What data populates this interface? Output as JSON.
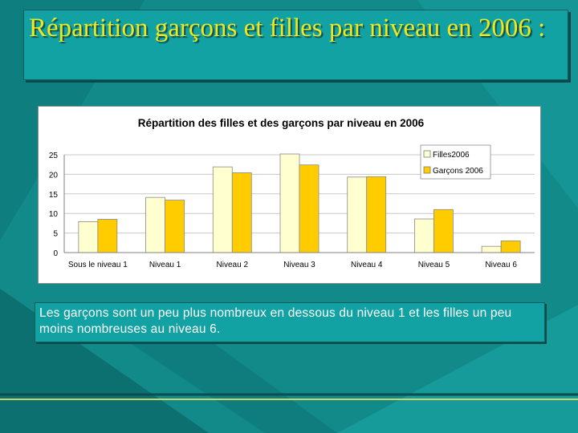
{
  "slide": {
    "title": "Répartition garçons et filles par niveau en 2006 :",
    "caption": "Les garçons sont un peu plus nombreux en dessous du niveau 1 et les filles un peu moins nombreuses au niveau 6."
  },
  "colors": {
    "background": "#128a8a",
    "title_text": "#f2e71b",
    "caption_text": "#ffffff",
    "filles": "#ffffd0",
    "garcons": "#ffcc00"
  },
  "chart_data": {
    "type": "bar",
    "title": "Répartition des filles et des garçons par niveau en 2006",
    "xlabel": "",
    "ylabel": "",
    "categories": [
      "Sous le niveau 1",
      "Niveau 1",
      "Niveau 2",
      "Niveau 3",
      "Niveau 4",
      "Niveau 5",
      "Niveau 6"
    ],
    "series": [
      {
        "name": "Filles2006",
        "color": "#ffffd0",
        "values": [
          7.9,
          14.1,
          21.9,
          25.2,
          19.3,
          8.6,
          1.6
        ]
      },
      {
        "name": "Garçons 2006",
        "color": "#ffcc00",
        "values": [
          8.5,
          13.4,
          20.4,
          22.4,
          19.4,
          11.0,
          3.0
        ]
      }
    ],
    "ylim": [
      0,
      25
    ],
    "yticks": [
      0,
      5,
      10,
      15,
      20,
      25
    ],
    "grid": true,
    "legend": "top-right"
  }
}
